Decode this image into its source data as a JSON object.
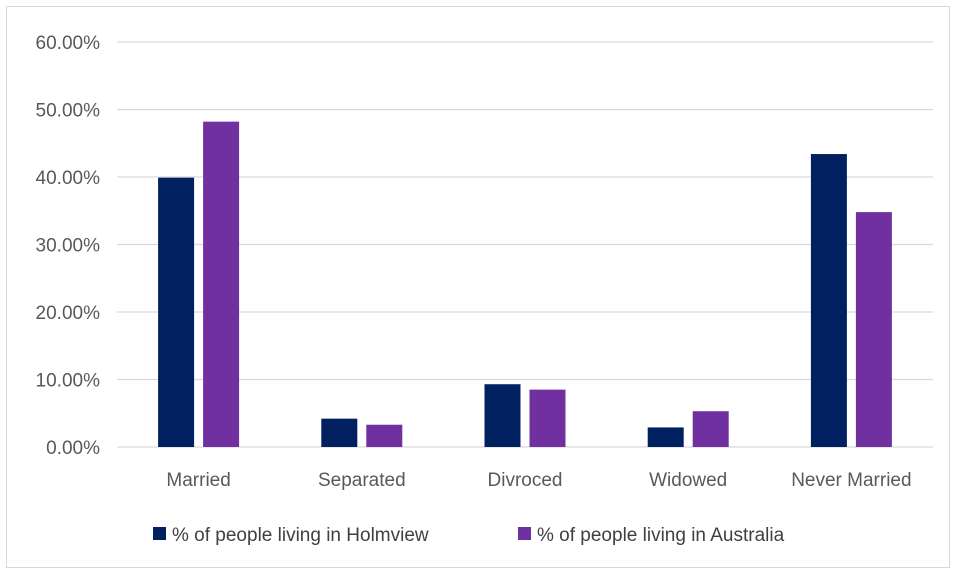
{
  "chart_data": {
    "type": "bar",
    "title": "",
    "xlabel": "",
    "ylabel": "",
    "categories": [
      "Married",
      "Separated",
      "Divroced",
      "Widowed",
      "Never Married"
    ],
    "series": [
      {
        "name": "% of people living in Holmview",
        "color": "#002060",
        "values": [
          39.9,
          4.2,
          9.3,
          2.9,
          43.4
        ]
      },
      {
        "name": "% of people living in Australia",
        "color": "#7030a0",
        "values": [
          48.2,
          3.3,
          8.5,
          5.3,
          34.8
        ]
      }
    ],
    "ylim": [
      0,
      60
    ],
    "yticks": [
      0,
      10,
      20,
      30,
      40,
      50,
      60
    ],
    "ytick_labels": [
      "0.00%",
      "10.00%",
      "20.00%",
      "30.00%",
      "40.00%",
      "50.00%",
      "60.00%"
    ],
    "grid": true,
    "legend_position": "bottom"
  }
}
